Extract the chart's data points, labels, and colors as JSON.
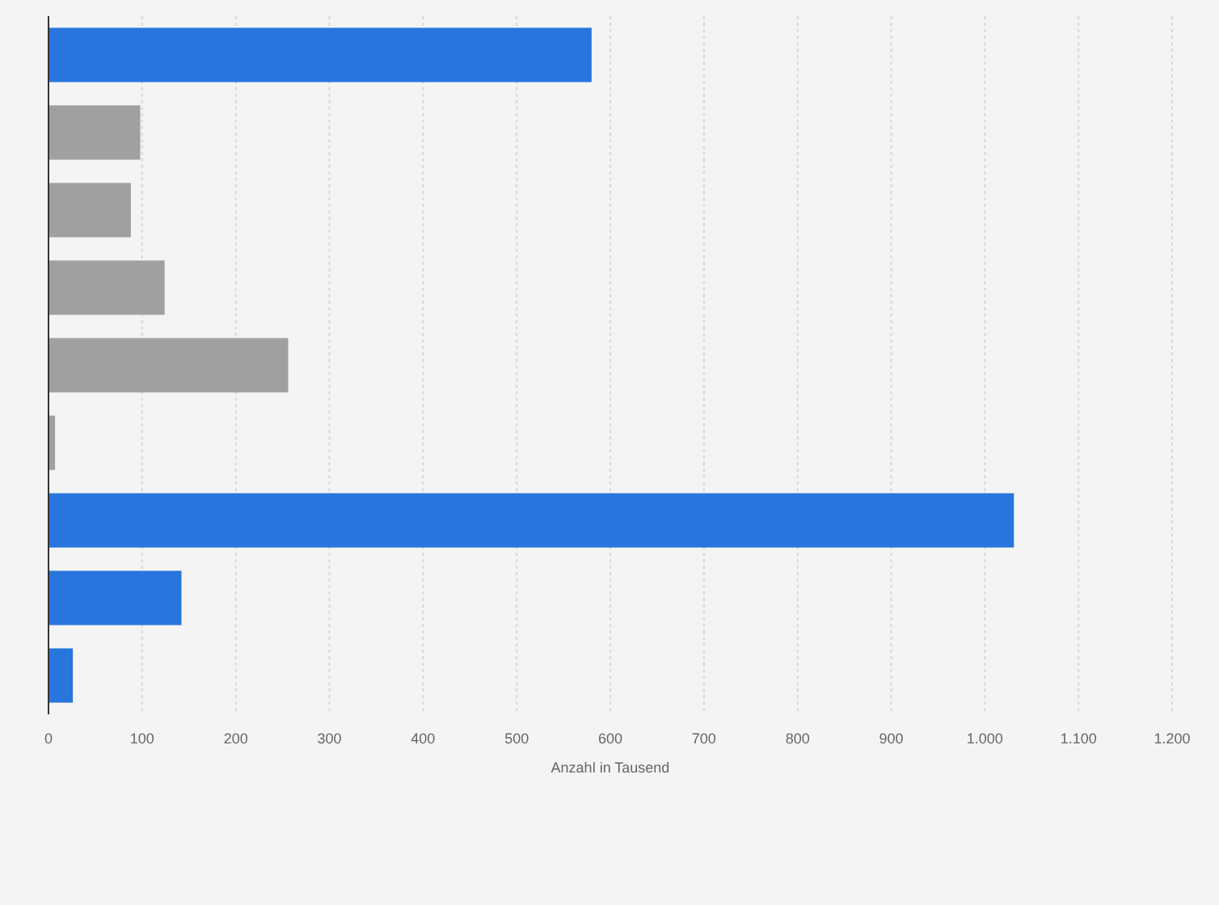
{
  "chart_data": {
    "type": "bar",
    "orientation": "horizontal",
    "xlabel": "Anzahl in Tausend",
    "categories": [
      null,
      null,
      null,
      null,
      null,
      null,
      null,
      null,
      null
    ],
    "values": [
      580,
      98,
      88,
      124,
      256,
      7,
      1031,
      142,
      26
    ],
    "colors": [
      "#2876dd",
      "#a0a0a0",
      "#a0a0a0",
      "#a0a0a0",
      "#a0a0a0",
      "#a0a0a0",
      "#2876dd",
      "#2876dd",
      "#2876dd"
    ],
    "xlim": [
      0,
      1200
    ],
    "xticks": [
      0,
      100,
      200,
      300,
      400,
      500,
      600,
      700,
      800,
      900,
      {
        "value": 1000,
        "label": "1.000"
      },
      {
        "value": 1100,
        "label": "1.100"
      },
      {
        "value": 1200,
        "label": "1.200"
      }
    ],
    "grid": "x"
  }
}
